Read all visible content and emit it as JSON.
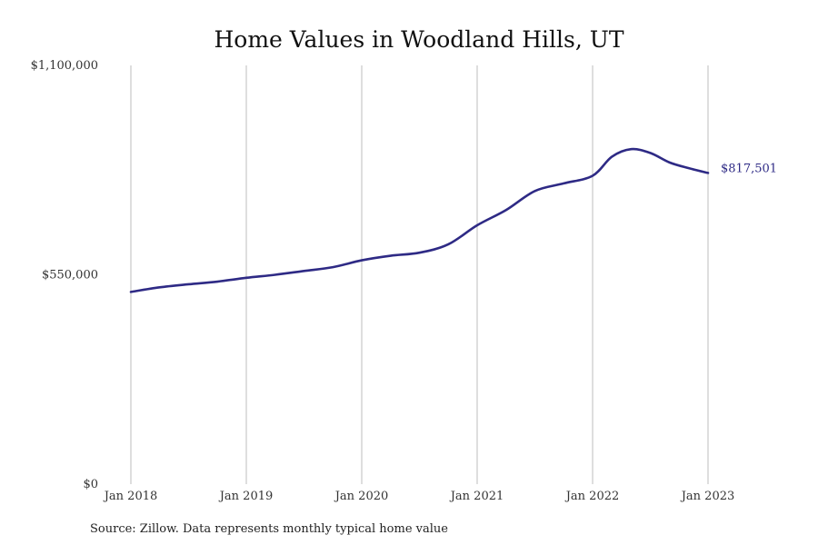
{
  "chart_data": {
    "type": "line",
    "title": "Home Values in Woodland Hills, UT",
    "xlabel": "",
    "ylabel": "",
    "ylim": [
      0,
      1100000
    ],
    "y_ticks": [
      {
        "value": 0,
        "label": "$0"
      },
      {
        "value": 550000,
        "label": "$550,000"
      },
      {
        "value": 1100000,
        "label": "$1,100,000"
      }
    ],
    "x_ticks": [
      {
        "value": "2018-01",
        "label": "Jan 2018"
      },
      {
        "value": "2019-01",
        "label": "Jan 2019"
      },
      {
        "value": "2020-01",
        "label": "Jan 2020"
      },
      {
        "value": "2021-01",
        "label": "Jan 2021"
      },
      {
        "value": "2022-01",
        "label": "Jan 2022"
      },
      {
        "value": "2023-01",
        "label": "Jan 2023"
      }
    ],
    "grid": "vertical",
    "line_color": "#2e2a85",
    "end_label": "$817,501",
    "series": [
      {
        "points": [
          {
            "x": "2018-01",
            "y": 505000
          },
          {
            "x": "2018-04",
            "y": 517000
          },
          {
            "x": "2018-07",
            "y": 525000
          },
          {
            "x": "2018-10",
            "y": 532000
          },
          {
            "x": "2019-01",
            "y": 542000
          },
          {
            "x": "2019-04",
            "y": 550000
          },
          {
            "x": "2019-07",
            "y": 560000
          },
          {
            "x": "2019-10",
            "y": 570000
          },
          {
            "x": "2020-01",
            "y": 588000
          },
          {
            "x": "2020-04",
            "y": 600000
          },
          {
            "x": "2020-07",
            "y": 608000
          },
          {
            "x": "2020-10",
            "y": 630000
          },
          {
            "x": "2021-01",
            "y": 680000
          },
          {
            "x": "2021-04",
            "y": 720000
          },
          {
            "x": "2021-07",
            "y": 770000
          },
          {
            "x": "2021-10",
            "y": 790000
          },
          {
            "x": "2022-01",
            "y": 810000
          },
          {
            "x": "2022-03",
            "y": 860000
          },
          {
            "x": "2022-05",
            "y": 880000
          },
          {
            "x": "2022-07",
            "y": 870000
          },
          {
            "x": "2022-09",
            "y": 845000
          },
          {
            "x": "2022-11",
            "y": 830000
          },
          {
            "x": "2023-01",
            "y": 817501
          }
        ]
      }
    ]
  },
  "source_note": "Source: Zillow. Data represents monthly typical home value"
}
